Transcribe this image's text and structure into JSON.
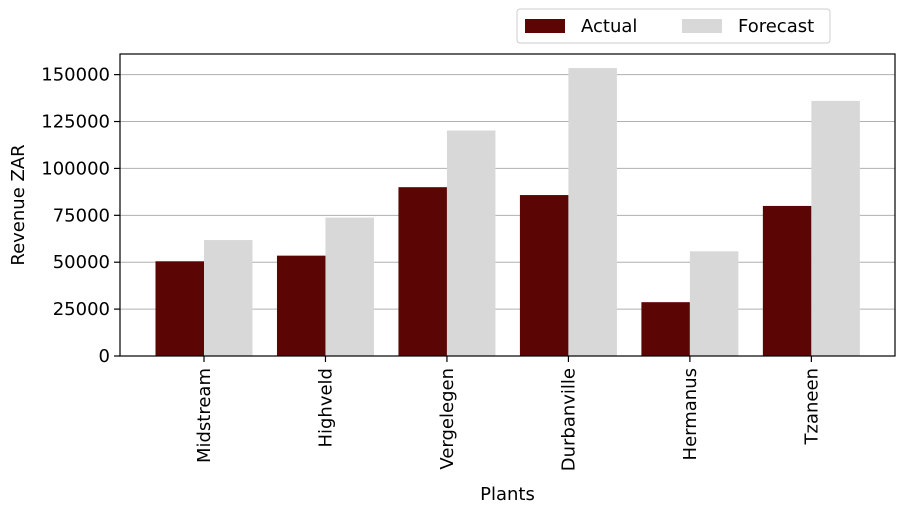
{
  "chart_data": {
    "type": "bar",
    "title": "",
    "xlabel": "Plants",
    "ylabel": "Revenue ZAR",
    "categories": [
      "Midstream",
      "Highveld",
      "Vergelegen",
      "Durbanville",
      "Hermanus",
      "Tzaneen"
    ],
    "series": [
      {
        "name": "Actual",
        "color": "#5c0505",
        "values": [
          50500,
          53500,
          90000,
          85800,
          28700,
          80000
        ]
      },
      {
        "name": "Forecast",
        "color": "#d8d8d8",
        "values": [
          61800,
          73800,
          120200,
          153500,
          55800,
          136000
        ]
      }
    ],
    "ylim": [
      0,
      161000
    ],
    "yticks": [
      0,
      25000,
      50000,
      75000,
      100000,
      125000,
      150000
    ],
    "grid": "y",
    "legend": "top-right, outside"
  }
}
